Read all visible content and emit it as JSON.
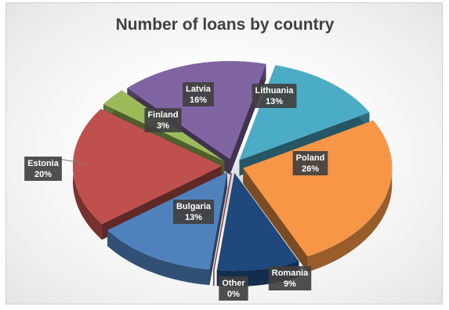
{
  "chart_data": {
    "type": "pie",
    "title": "Number of loans by country",
    "exploded": true,
    "three_d": true,
    "legend": "none",
    "slices": [
      {
        "label": "Lithuania",
        "value": 13,
        "value_label": "13%",
        "color": "#4bacc6"
      },
      {
        "label": "Poland",
        "value": 26,
        "value_label": "26%",
        "color": "#f79646"
      },
      {
        "label": "Romania",
        "value": 9,
        "value_label": "9%",
        "color": "#1f497d"
      },
      {
        "label": "Other",
        "value": 0,
        "value_label": "0%",
        "color": "#c0504d"
      },
      {
        "label": "Bulgaria",
        "value": 13,
        "value_label": "13%",
        "color": "#4f81bd"
      },
      {
        "label": "Estonia",
        "value": 20,
        "value_label": "20%",
        "color": "#c0504d"
      },
      {
        "label": "Finland",
        "value": 3,
        "value_label": "3%",
        "color": "#9bbb59"
      },
      {
        "label": "Latvia",
        "value": 16,
        "value_label": "16%",
        "color": "#8064a2"
      }
    ]
  }
}
